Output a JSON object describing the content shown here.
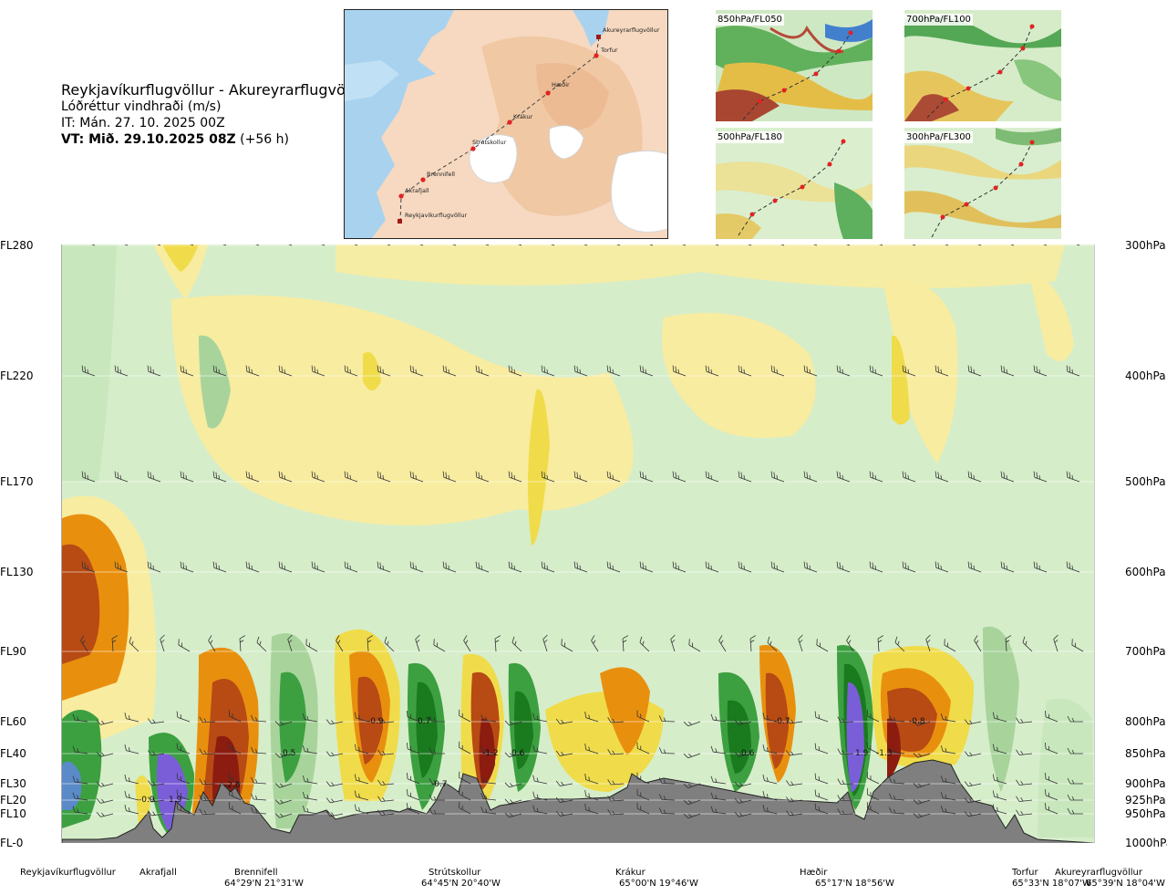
{
  "header": {
    "route": "Reykjavíkurflugvöllur - Akureyrarflugvöllur",
    "variable": "Lóðréttur vindhraði (m/s)",
    "issue_time": "IT: Mán. 27. 10. 2025 00Z",
    "valid_prefix": "VT: Mið. 29.10.2025 08Z",
    "valid_offset": "(+56 h)"
  },
  "map": {
    "places": [
      "Akureyrarflugvöllur",
      "Torfur",
      "Hæðir",
      "Krákur",
      "Strútskollur",
      "Brennifell",
      "Akrafjall",
      "Reykjavíkurflugvöllur"
    ],
    "insets": [
      "850hPa/FL050",
      "700hPa/FL100",
      "500hPa/FL180",
      "300hPa/FL300"
    ]
  },
  "chart_data": {
    "type": "heatmap",
    "title": "Lóðréttur vindhraði (m/s)",
    "left_axis_labels": [
      "FL280",
      "FL220",
      "FL170",
      "FL130",
      "FL90",
      "FL60",
      "FL40",
      "FL30",
      "FL20",
      "FL10",
      "FL-0"
    ],
    "right_axis_labels": [
      "300hPa",
      "400hPa",
      "500hPa",
      "600hPa",
      "700hPa",
      "800hPa",
      "850hPa",
      "900hPa",
      "925hPa",
      "950hPa",
      "1000hPa"
    ],
    "levels_hpa": [
      300,
      400,
      500,
      600,
      700,
      800,
      850,
      900,
      925,
      950,
      1000
    ],
    "waypoints": [
      {
        "name": "Reykjavíkurflugvöllur",
        "coord": ""
      },
      {
        "name": "Akrafjall",
        "coord": ""
      },
      {
        "name": "Brennifell",
        "coord": "64°29'N 21°31'W"
      },
      {
        "name": "Strútskollur",
        "coord": "64°45'N 20°40'W"
      },
      {
        "name": "Krákur",
        "coord": "65°00'N 19°46'W"
      },
      {
        "name": "Hæðir",
        "coord": "65°17'N 18°56'W"
      },
      {
        "name": "Torfur",
        "coord": "65°33'N 18°07'W"
      },
      {
        "name": "Akureyrarflugvöllur",
        "coord": "65°39'N 18°04'W"
      }
    ],
    "value_labels": [
      "-0.9",
      "1.9",
      "-2.6",
      "0.5",
      "-0.9",
      "0.7",
      "-0.7",
      "-1.2",
      "0.6",
      "0.6",
      "-0.7",
      "1.9",
      "-1.3",
      "-0.8"
    ],
    "colors": {
      "strong_down": "#8c1c10",
      "down3": "#b84a14",
      "down2": "#e8900e",
      "down1": "#f2d23a",
      "down0": "#f8eca0",
      "neutral": "#f4f8e6",
      "up0": "#d4ecc8",
      "up1": "#a8d49c",
      "up2": "#3ca040",
      "up3": "#1a7a1e",
      "strong_up": "#7a5ed8",
      "terrain": "#7f7f7f"
    }
  }
}
